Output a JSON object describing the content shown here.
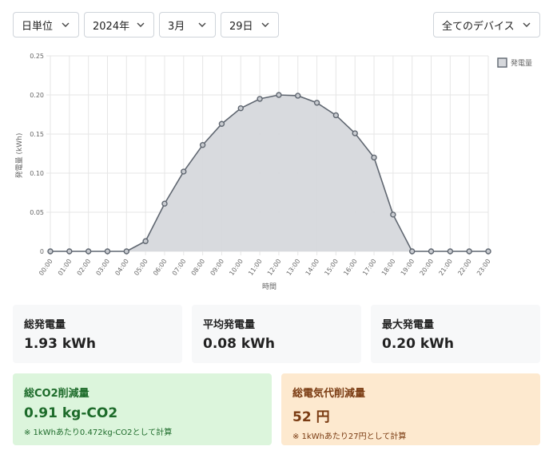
{
  "filters": {
    "unit": "日単位",
    "year": "2024年",
    "month": "3月",
    "day": "29日",
    "device": "全てのデバイス"
  },
  "icons": {
    "dropdown": "chevron-down-icon",
    "legend_swatch": "legend-swatch-icon"
  },
  "colors": {
    "series_line": "#5f6670",
    "series_fill": "#d6d8dc",
    "grid": "#e6e6e6",
    "co2_bg": "#dcf5dc",
    "co2_text": "#1d6b2a",
    "cost_bg": "#fde9cf",
    "cost_text": "#7a3b12"
  },
  "chart_data": {
    "type": "area",
    "x": [
      "00:00",
      "01:00",
      "02:00",
      "03:00",
      "04:00",
      "05:00",
      "06:00",
      "07:00",
      "08:00",
      "09:00",
      "10:00",
      "11:00",
      "12:00",
      "13:00",
      "14:00",
      "15:00",
      "16:00",
      "17:00",
      "18:00",
      "19:00",
      "20:00",
      "21:00",
      "22:00",
      "23:00"
    ],
    "series": [
      {
        "name": "発電量",
        "values": [
          0,
          0,
          0,
          0,
          0,
          0.013,
          0.061,
          0.102,
          0.136,
          0.163,
          0.183,
          0.195,
          0.2,
          0.199,
          0.19,
          0.174,
          0.151,
          0.12,
          0.047,
          0,
          0,
          0,
          0,
          0
        ]
      }
    ],
    "xlabel": "時間",
    "ylabel": "発電量 (kWh)",
    "ylim": [
      0,
      0.25
    ],
    "yticks": [
      "0",
      "0.05",
      "0.10",
      "0.15",
      "0.20",
      "0.25"
    ],
    "grid": true,
    "legend": "top-right"
  },
  "stats": [
    {
      "label": "総発電量",
      "value": "1.93 kWh"
    },
    {
      "label": "平均発電量",
      "value": "0.08 kWh"
    },
    {
      "label": "最大発電量",
      "value": "0.20 kWh"
    }
  ],
  "co2": {
    "label": "総CO2削減量",
    "value": "0.91 kg-CO2",
    "note": "※ 1kWhあたり0.472kg-CO2として計算"
  },
  "cost": {
    "label": "総電気代削減量",
    "value": "52 円",
    "note": "※ 1kWhあたり27円として計算"
  }
}
